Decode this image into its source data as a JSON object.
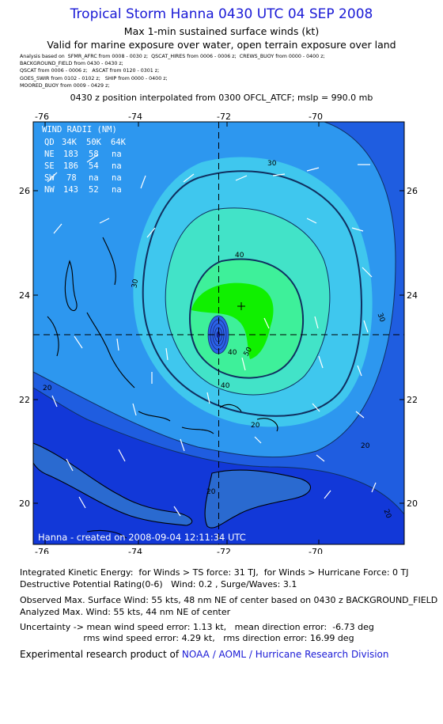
{
  "header": {
    "title": "Tropical Storm Hanna 0430 UTC 04 SEP 2008",
    "subtitle": "Max 1-min sustained surface winds (kt)",
    "validity": "Valid for marine exposure over water, open terrain exposure over land",
    "analysis_lines": [
      "Analysis based on  SFMR_AFRC from 0008 - 0030 z;  QSCAT_HIRES from 0006 - 0006 z;  CREWS_BUOY from 0000 - 0400 z;",
      "BACKGROUND_FIELD from 0430 - 0430 z;",
      "QSCAT from 0006 - 0006 z;   ASCAT from 0120 - 0301 z;",
      "GOES_SWIR from 0102 - 0102 z;   SHIP from 0000 - 0400 z;",
      "MOORED_BUOY from 0009 - 0429 z;"
    ],
    "position_note": "0430 z position interpolated from 0300 OFCL_ATCF; mslp = 990.0 mb"
  },
  "map": {
    "lon_ticks": [
      "-76",
      "-74",
      "-72",
      "-70"
    ],
    "lat_ticks": [
      "26",
      "24",
      "22",
      "20"
    ],
    "lon_range": [
      -77,
      -69.5
    ],
    "lat_range": [
      19.3,
      27.5
    ],
    "center": {
      "lon": -72.0,
      "lat": 23.3
    },
    "credit": "Hanna - created on 2008-09-04 12:11:34 UTC",
    "contour_labels": [
      "30",
      "30",
      "30",
      "40",
      "40",
      "40",
      "50",
      "20",
      "20",
      "20",
      "20",
      "20"
    ],
    "colors": {
      "20": "#1f5de0",
      "30": "#2d97ef",
      "40": "#3fc7ee",
      "45": "#42e3c8",
      "50": "#3ef09a",
      "55": "#10f000",
      "below": "#1238d8"
    },
    "wind_radii": {
      "title": "WIND RADII (NM)",
      "header": [
        "QD",
        "34K",
        "50K",
        "64K"
      ],
      "rows": [
        [
          "NE",
          "183",
          "58",
          "na"
        ],
        [
          "SE",
          "186",
          "54",
          "na"
        ],
        [
          "SW",
          "78",
          "na",
          "na"
        ],
        [
          "NW",
          "143",
          "52",
          "na"
        ]
      ]
    }
  },
  "info": {
    "ike": "Integrated Kinetic Energy:  for Winds > TS force: 31 TJ,  for Winds > Hurricane Force: 0 TJ",
    "dpr": "Destructive Potential Rating(0-6)   Wind: 0.2 , Surge/Waves: 3.1",
    "observed": "Observed Max. Surface Wind: 55 kts, 48 nm NE of center based on 0430 z BACKGROUND_FIELD",
    "analyzed": "Analyzed Max. Wind: 55 kts, 44 nm NE of center",
    "uncertainty1": "Uncertainty -> mean wind speed error: 1.13 kt,   mean direction error:  -6.73 deg",
    "uncertainty2": "                       rms wind speed error: 4.29 kt,   rms direction error: 16.99 deg"
  },
  "footer": {
    "prefix": "Experimental research product of ",
    "org": "NOAA / AOML / Hurricane Research Division"
  }
}
